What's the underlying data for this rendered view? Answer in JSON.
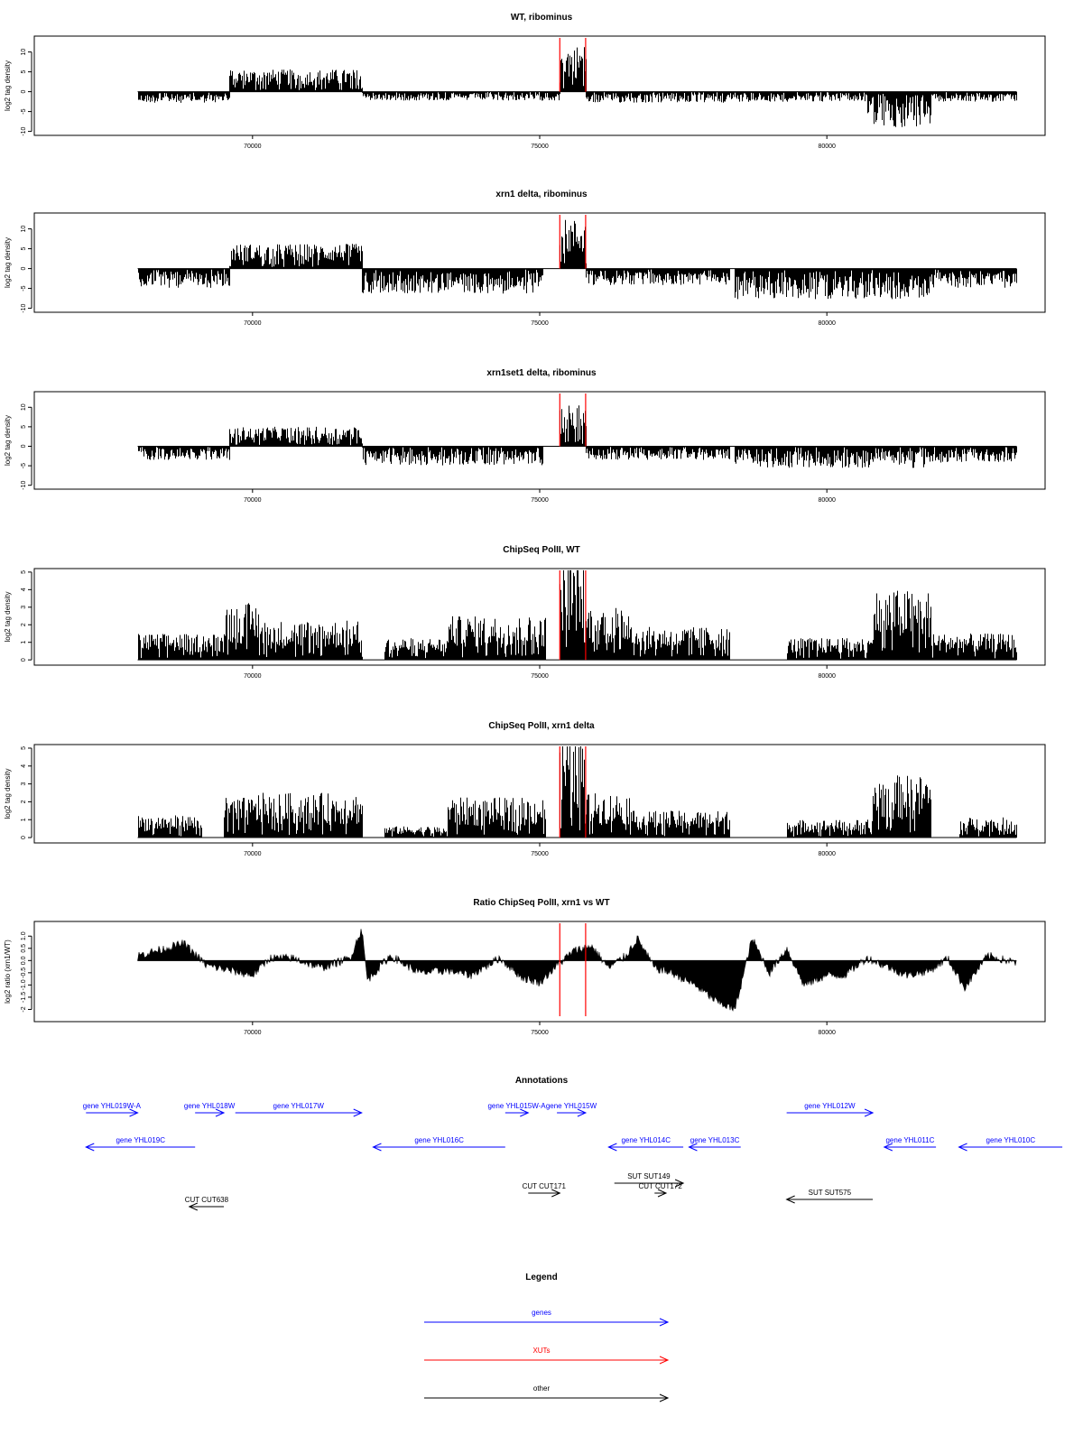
{
  "chart_data": [
    {
      "type": "bar",
      "title": "WT, ribominus",
      "ylabel": "log2 tag density",
      "ylim": [
        -11,
        14
      ],
      "yticks": [
        -10,
        -5,
        0,
        5,
        10
      ],
      "xlim": [
        66200,
        83800
      ],
      "xticks": [
        70000,
        75000,
        80000
      ],
      "markers": [
        75350,
        75800
      ],
      "profile": [
        {
          "from": 68000,
          "to": 69600,
          "value": -2.0
        },
        {
          "from": 69600,
          "to": 71900,
          "value": 4.5
        },
        {
          "from": 71900,
          "to": 75350,
          "value": -1.6
        },
        {
          "from": 75350,
          "to": 75800,
          "value": 9.5
        },
        {
          "from": 75800,
          "to": 78200,
          "value": -2.0
        },
        {
          "from": 78200,
          "to": 80700,
          "value": -1.8
        },
        {
          "from": 80700,
          "to": 81800,
          "value": -6.5
        },
        {
          "from": 81800,
          "to": 83300,
          "value": -1.8
        }
      ]
    },
    {
      "type": "bar",
      "title": "xrn1 delta, ribominus",
      "ylabel": "log2 tag density",
      "ylim": [
        -11,
        14
      ],
      "yticks": [
        -10,
        -5,
        0,
        5,
        10
      ],
      "xlim": [
        66200,
        83800
      ],
      "xticks": [
        70000,
        75000,
        80000
      ],
      "markers": [
        75350,
        75800
      ],
      "profile": [
        {
          "from": 68000,
          "to": 69600,
          "value": -3.5
        },
        {
          "from": 69600,
          "to": 71900,
          "value": 5.0
        },
        {
          "from": 71900,
          "to": 75050,
          "value": -4.5
        },
        {
          "from": 75350,
          "to": 75800,
          "value": 10.0
        },
        {
          "from": 75800,
          "to": 78300,
          "value": -3.0
        },
        {
          "from": 78400,
          "to": 81800,
          "value": -5.5
        },
        {
          "from": 81800,
          "to": 83300,
          "value": -3.5
        }
      ]
    },
    {
      "type": "bar",
      "title": "xrn1set1 delta, ribominus",
      "ylabel": "log2 tag density",
      "ylim": [
        -11,
        14
      ],
      "yticks": [
        -10,
        -5,
        0,
        5,
        10
      ],
      "xlim": [
        66200,
        83800
      ],
      "xticks": [
        70000,
        75000,
        80000
      ],
      "markers": [
        75350,
        75800
      ],
      "profile": [
        {
          "from": 68000,
          "to": 69600,
          "value": -2.5
        },
        {
          "from": 69600,
          "to": 71900,
          "value": 4.0
        },
        {
          "from": 71900,
          "to": 75050,
          "value": -3.5
        },
        {
          "from": 75350,
          "to": 75800,
          "value": 8.5
        },
        {
          "from": 75800,
          "to": 78300,
          "value": -2.5
        },
        {
          "from": 78400,
          "to": 81800,
          "value": -4.0
        },
        {
          "from": 81800,
          "to": 83300,
          "value": -3.0
        }
      ]
    },
    {
      "type": "bar",
      "title": "ChipSeq PolII, WT",
      "ylabel": "log2 tag density",
      "ylim": [
        -0.3,
        5.2
      ],
      "yticks": [
        0,
        1,
        2,
        3,
        4,
        5
      ],
      "xlim": [
        66200,
        83800
      ],
      "xticks": [
        70000,
        75000,
        80000
      ],
      "markers": [
        75350,
        75800
      ],
      "profile": [
        {
          "from": 68000,
          "to": 69500,
          "value": 1.2
        },
        {
          "from": 69500,
          "to": 70100,
          "value": 2.6
        },
        {
          "from": 70100,
          "to": 71900,
          "value": 1.8
        },
        {
          "from": 72300,
          "to": 73400,
          "value": 1.0
        },
        {
          "from": 73400,
          "to": 75100,
          "value": 2.0
        },
        {
          "from": 75350,
          "to": 75800,
          "value": 4.5
        },
        {
          "from": 75800,
          "to": 76600,
          "value": 2.5
        },
        {
          "from": 76600,
          "to": 78300,
          "value": 1.5
        },
        {
          "from": 79300,
          "to": 80800,
          "value": 1.0
        },
        {
          "from": 80800,
          "to": 81800,
          "value": 3.2
        },
        {
          "from": 81800,
          "to": 83300,
          "value": 1.2
        }
      ]
    },
    {
      "type": "bar",
      "title": "ChipSeq PolII, xrn1 delta",
      "ylabel": "log2 tag density",
      "ylim": [
        -0.3,
        5.2
      ],
      "yticks": [
        0,
        1,
        2,
        3,
        4,
        5
      ],
      "xlim": [
        66200,
        83800
      ],
      "xticks": [
        70000,
        75000,
        80000
      ],
      "markers": [
        75350,
        75800
      ],
      "profile": [
        {
          "from": 68000,
          "to": 69100,
          "value": 1.0
        },
        {
          "from": 69500,
          "to": 70100,
          "value": 1.8
        },
        {
          "from": 70100,
          "to": 71900,
          "value": 2.0
        },
        {
          "from": 72300,
          "to": 73400,
          "value": 0.5
        },
        {
          "from": 73400,
          "to": 75100,
          "value": 1.8
        },
        {
          "from": 75350,
          "to": 75800,
          "value": 4.5
        },
        {
          "from": 75800,
          "to": 76600,
          "value": 2.0
        },
        {
          "from": 76600,
          "to": 78300,
          "value": 1.2
        },
        {
          "from": 79300,
          "to": 80800,
          "value": 0.8
        },
        {
          "from": 80800,
          "to": 81800,
          "value": 2.8
        },
        {
          "from": 82300,
          "to": 83300,
          "value": 0.9
        }
      ]
    },
    {
      "type": "area",
      "title": "Ratio ChipSeq PolII, xrn1 vs WT",
      "ylabel": "log2 ratio (xrn1/WT)",
      "ylim": [
        -2.5,
        1.6
      ],
      "yticks": [
        -2.0,
        -1.5,
        -1.0,
        -0.5,
        0.0,
        0.5,
        1.0
      ],
      "ytick_labels": [
        "-2",
        "-1.5",
        "-1.0",
        "-0.5",
        "0.0",
        "0.5",
        "1.0"
      ],
      "xlim": [
        66200,
        83800
      ],
      "xticks": [
        70000,
        75000,
        80000
      ],
      "markers": [
        75350,
        75800
      ],
      "x": [
        68000,
        68500,
        68800,
        69200,
        69600,
        70000,
        70300,
        70700,
        71200,
        71700,
        71900,
        72000,
        72400,
        72900,
        73400,
        73800,
        74300,
        74700,
        75000,
        75300,
        75600,
        75900,
        76200,
        76500,
        76700,
        77000,
        77300,
        77700,
        78100,
        78400,
        78700,
        79000,
        79300,
        79600,
        80000,
        80300,
        80700,
        81000,
        81400,
        81800,
        82100,
        82400,
        82800,
        83300
      ],
      "y": [
        0.2,
        0.5,
        0.7,
        -0.2,
        -0.4,
        -0.6,
        0.1,
        0.1,
        -0.3,
        0.1,
        1.3,
        -0.8,
        0.2,
        -0.5,
        -0.4,
        -0.6,
        0.1,
        -0.7,
        -0.9,
        -0.2,
        0.4,
        0.6,
        -0.3,
        0.2,
        0.9,
        -0.3,
        -0.5,
        -1.0,
        -1.7,
        -2.0,
        0.9,
        -0.5,
        0.5,
        -1.0,
        -0.6,
        -0.6,
        0.1,
        -0.2,
        -0.6,
        -0.4,
        0.1,
        -1.1,
        0.2,
        -0.1
      ]
    }
  ],
  "annotations": {
    "title": "Annotations",
    "items": [
      {
        "label": "gene YHL019W-A",
        "kind": "gene",
        "from": 67100,
        "to": 68000,
        "row": 0
      },
      {
        "label": "gene YHL019C",
        "kind": "gene",
        "from": 67100,
        "to": 69000,
        "row": 1
      },
      {
        "label": "gene YHL018W",
        "kind": "gene",
        "from": 69000,
        "to": 69500,
        "row": 0
      },
      {
        "label": "gene YHL017W",
        "kind": "gene",
        "from": 69700,
        "to": 71900,
        "row": 0
      },
      {
        "label": "gene YHL016C",
        "kind": "gene",
        "from": 72100,
        "to": 74400,
        "row": 1
      },
      {
        "label": "gene YHL015W-A",
        "kind": "gene",
        "from": 74400,
        "to": 74800,
        "row": 0
      },
      {
        "label": "gene YHL015W",
        "kind": "gene",
        "from": 75300,
        "to": 75800,
        "row": 0
      },
      {
        "label": "gene YHL014C",
        "kind": "gene",
        "from": 76200,
        "to": 77500,
        "row": 1
      },
      {
        "label": "gene YHL013C",
        "kind": "gene",
        "from": 77600,
        "to": 78500,
        "row": 1
      },
      {
        "label": "gene YHL012W",
        "kind": "gene",
        "from": 79300,
        "to": 80800,
        "row": 0
      },
      {
        "label": "gene YHL011C",
        "kind": "gene",
        "from": 81000,
        "to": 81900,
        "row": 1
      },
      {
        "label": "gene YHL010C",
        "kind": "gene",
        "from": 82300,
        "to": 84100,
        "row": 1
      },
      {
        "label": "SUT SUT149",
        "kind": "other",
        "from": 76300,
        "to": 77500,
        "row": 2
      },
      {
        "label": "SUT SUT575",
        "kind": "other",
        "from": 79300,
        "to": 80800,
        "row": 3
      },
      {
        "label": "CUT CUT171",
        "kind": "other",
        "from": 74800,
        "to": 75350,
        "row": 4
      },
      {
        "label": "CUT CUT172",
        "kind": "other",
        "from": 77000,
        "to": 77200,
        "row": 4
      },
      {
        "label": "CUT CUT638",
        "kind": "other",
        "from": 68900,
        "to": 69500,
        "row": 5
      }
    ]
  },
  "legend": {
    "title": "Legend",
    "items": [
      {
        "label": "genes",
        "color": "#0000ff"
      },
      {
        "label": "XUTs",
        "color": "#ff0000"
      },
      {
        "label": "other",
        "color": "#000000"
      }
    ]
  },
  "colors": {
    "gene": "#0000ff",
    "xut": "#ff0000",
    "other": "#000000",
    "marker": "#ff0000",
    "bars": "#000000"
  }
}
